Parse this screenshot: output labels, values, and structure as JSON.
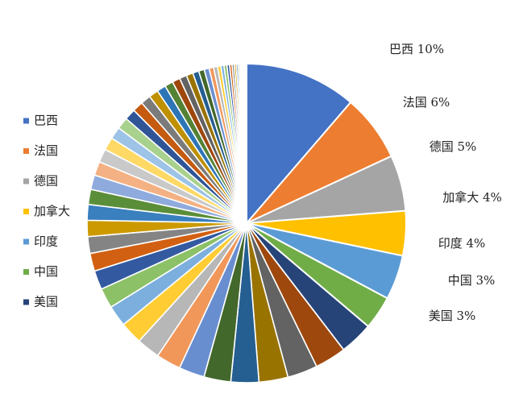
{
  "chart_data": {
    "type": "pie",
    "title": "",
    "legend": {
      "placement": "left",
      "entries": [
        "巴西",
        "法国",
        "德国",
        "加拿大",
        "印度",
        "中国",
        "美国"
      ]
    },
    "slices": [
      {
        "name": "巴西",
        "value": 10,
        "label": "巴西 10%",
        "color": "#4472C4"
      },
      {
        "name": "法国",
        "value": 6,
        "label": "法国 6%",
        "color": "#ED7D31"
      },
      {
        "name": "德国",
        "value": 5,
        "label": "德国 5%",
        "color": "#A5A5A5"
      },
      {
        "name": "加拿大",
        "value": 4,
        "label": "加拿大 4%",
        "color": "#FFC000"
      },
      {
        "name": "印度",
        "value": 4,
        "label": "印度 4%",
        "color": "#5B9BD5"
      },
      {
        "name": "中国",
        "value": 3,
        "label": "中国 3%",
        "color": "#70AD47"
      },
      {
        "name": "美国",
        "value": 3,
        "label": "美国 3%",
        "color": "#264478"
      }
    ],
    "other_slice_values": [
      2.8,
      2.7,
      2.6,
      2.5,
      2.4,
      2.3,
      2.2,
      2.1,
      2.0,
      1.9,
      1.8,
      1.7,
      1.6,
      1.5,
      1.45,
      1.4,
      1.35,
      1.3,
      1.25,
      1.2,
      1.15,
      1.1,
      1.05,
      1.0,
      0.95,
      0.9,
      0.85,
      0.8,
      0.75,
      0.7,
      0.65,
      0.6,
      0.55,
      0.5,
      0.45,
      0.4,
      0.35,
      0.3,
      0.28,
      0.26,
      0.24,
      0.22,
      0.2,
      0.18,
      0.16,
      0.14,
      0.12,
      0.1,
      0.09,
      0.08,
      0.07,
      0.06,
      0.05,
      0.04
    ],
    "palette": [
      "#9E480E",
      "#636363",
      "#997300",
      "#255E91",
      "#43682B",
      "#698ED0",
      "#F1975A",
      "#B7B7B7",
      "#FFCD33",
      "#7CAFDD",
      "#8CC168",
      "#335AA1",
      "#D26012",
      "#848484",
      "#CC9A00",
      "#3A7FBE",
      "#5B8E39",
      "#8FAADC",
      "#F4B183",
      "#C9C9C9",
      "#FFD966",
      "#9DC3E6",
      "#A9D18E",
      "#2F5597",
      "#C55A11",
      "#7B7B7B",
      "#BF9000",
      "#2E75B6",
      "#548235"
    ]
  }
}
